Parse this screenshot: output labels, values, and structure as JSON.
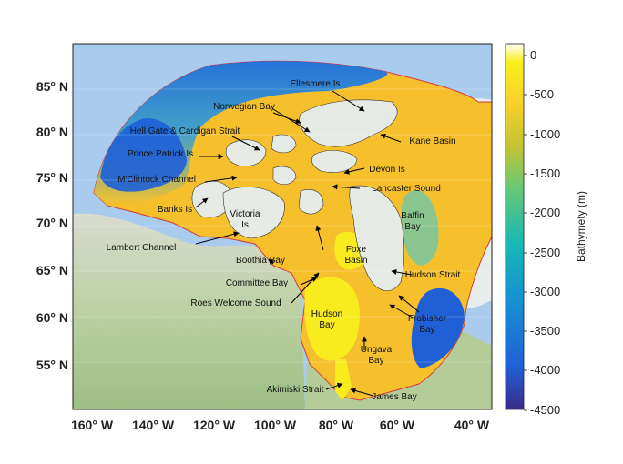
{
  "map": {
    "lat_ticks": [
      "85",
      "80",
      "75",
      "70",
      "65",
      "60",
      "55"
    ],
    "lon_ticks": [
      "160",
      "140",
      "120",
      "100",
      "80",
      "60",
      "40"
    ],
    "lat_suffix": "N",
    "lon_suffix": "W",
    "degree_symbol": "°",
    "lon_range": [
      -166,
      -37
    ],
    "lat_range": [
      50,
      89
    ],
    "labels": [
      "Ellesmere Is",
      "Norwegian Bay",
      "Hell Gate & Cardigan Strait",
      "Kane Basin",
      "Prince Patrick Is",
      "Devon Is",
      "M'Clintock Channel",
      "Lancaster Sound",
      "Banks Is",
      "Victoria Is",
      "Baffin Bay",
      "Lambert Channel",
      "Foxe Basin",
      "Boothia Bay",
      "Hudson Strait",
      "Committee Bay",
      "Roes Welcome Sound",
      "Frobisher Bay",
      "Hudson Bay",
      "Ungava Bay",
      "Akimiski Strait",
      "James Bay"
    ]
  },
  "colorbar": {
    "title": "Bathymety (m)",
    "ticks": [
      "0",
      "-500",
      "-1000",
      "-1500",
      "-2000",
      "-2500",
      "-3000",
      "-3500",
      "-4000",
      "-4500"
    ],
    "range": [
      -4500,
      100
    ],
    "colors": [
      "#3a2a8c",
      "#1f62d8",
      "#1591d4",
      "#17b8b5",
      "#62c878",
      "#c4c432",
      "#fad02b",
      "#f8f01a",
      "#ffffff"
    ]
  }
}
